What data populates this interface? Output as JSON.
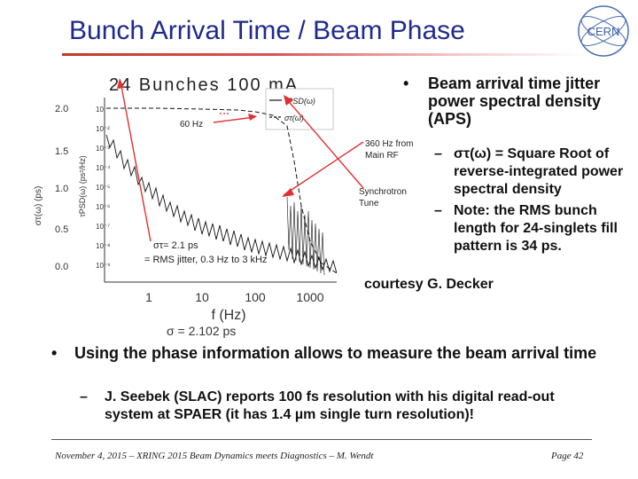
{
  "slide": {
    "title": "Bunch Arrival Time / Beam Phase",
    "logo_text": "CERN"
  },
  "figure": {
    "plot_title": "24 Bunches 100 mA",
    "legend": [
      "τPSD(ω)",
      "στ(ω)"
    ],
    "y_left_label": "στ(ω) (ps)",
    "y_right_label": "τPSD(ω) (ps²/Hz)",
    "x_label": "f (Hz)",
    "x_ticks": [
      "1",
      "10",
      "100",
      "1000"
    ],
    "y_left_ticks": [
      "2.0",
      "1.5",
      "1.0",
      "0.5",
      "0.0"
    ],
    "y_right_ticks": [
      "10",
      "10⁻²",
      "10⁻³",
      "10⁻⁴",
      "10⁻⁵",
      "10⁻⁶",
      "10⁻⁷",
      "10⁻⁸",
      "10⁻⁹"
    ],
    "sigma_value": "σ = 2.102 ps",
    "annotations": {
      "hz60": "60 Hz",
      "hz360_1": "360 Hz from",
      "hz360_2": "Main RF",
      "synch_1": "Synchrotron",
      "synch_2": "Tune",
      "sigma_1": "στ= 2.1 ps",
      "sigma_2": "= RMS jitter, 0.3 Hz to 3 kHz"
    }
  },
  "right_bullet": {
    "marker": "•",
    "text": "Beam arrival time jitter power spectral density (APS)",
    "subs": [
      "στ(ω) = Square Root of reverse-integrated power spectral density",
      "Note: the RMS bunch length for 24-singlets fill pattern is 34 ps."
    ]
  },
  "courtesy": "courtesy G. Decker",
  "bottom_bullet": {
    "marker": "•",
    "text": "Using the phase information allows to measure the beam arrival time",
    "sub": "J. Seebek (SLAC) reports 100 fs resolution with his digital read-out system at SPAER (it has 1.4 µm single turn resolution)!"
  },
  "dash": "–",
  "footer": {
    "left": "November 4, 2015 – XRING 2015 Beam Dynamics meets Diagnostics – M. Wendt",
    "right": "Page 42"
  },
  "colors": {
    "title": "#1f2a8c",
    "accent": "#c0392b",
    "arrow": "#e03030"
  }
}
